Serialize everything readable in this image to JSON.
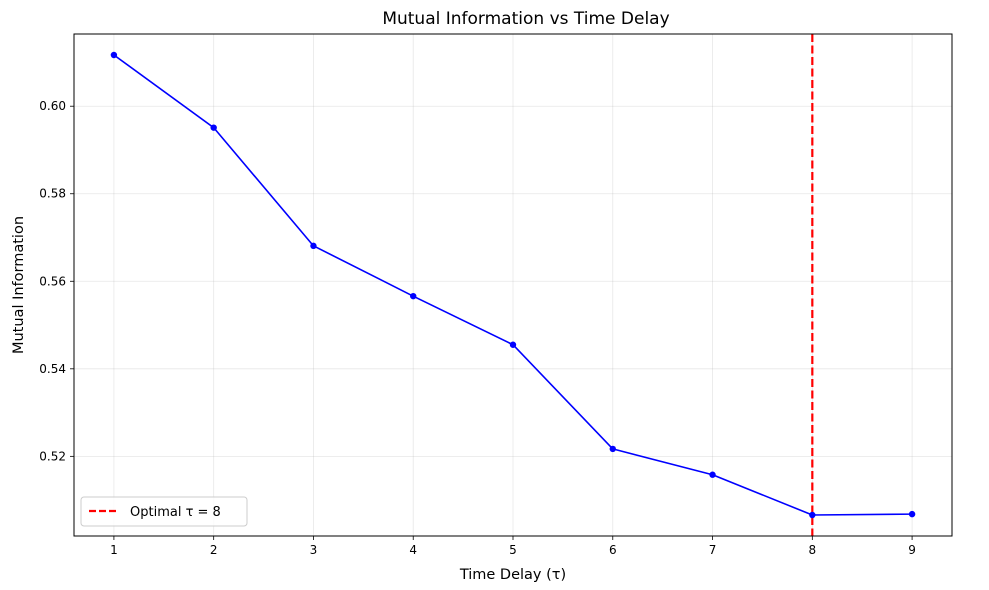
{
  "chart_data": {
    "type": "line",
    "title": "Mutual Information vs Time Delay",
    "xlabel": "Time Delay (τ)",
    "ylabel": "Mutual Information",
    "xlim": [
      0.6,
      9.4
    ],
    "ylim": [
      0.5018,
      0.6165
    ],
    "xticks": [
      1,
      2,
      3,
      4,
      5,
      6,
      7,
      8,
      9
    ],
    "yticks": [
      0.52,
      0.54,
      0.56,
      0.58,
      0.6
    ],
    "ytick_labels": [
      "0.52",
      "0.54",
      "0.56",
      "0.58",
      "0.60"
    ],
    "grid": true,
    "legend_position": "lower-left",
    "series": [
      {
        "x": [
          1,
          2,
          3,
          4,
          5,
          6,
          7,
          8,
          9
        ],
        "values": [
          0.6117,
          0.5951,
          0.5681,
          0.5566,
          0.5455,
          0.5217,
          0.5158,
          0.5066,
          0.5068
        ],
        "color": "#0000ff"
      }
    ],
    "vline": {
      "x": 8,
      "label": "Optimal τ = 8",
      "color": "#ff0000"
    }
  }
}
